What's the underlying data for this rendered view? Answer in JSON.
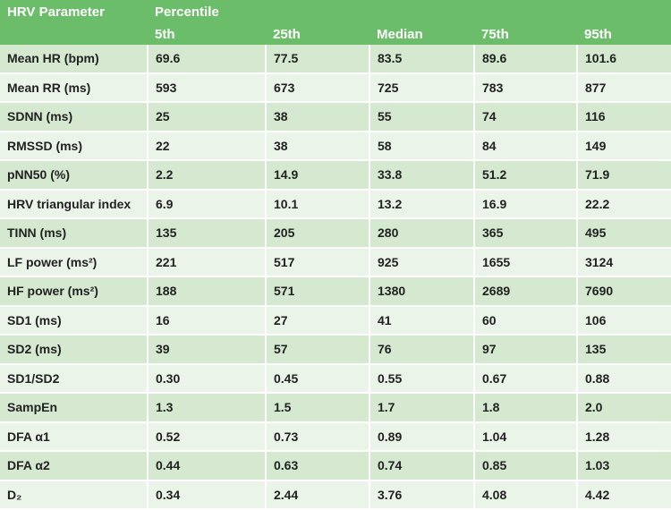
{
  "table": {
    "header": {
      "parameter": "HRV Parameter",
      "percentile": "Percentile",
      "columns": [
        "5th",
        "25th",
        "Median",
        "75th",
        "95th"
      ]
    },
    "rows": [
      [
        "Mean HR (bpm)",
        "69.6",
        "77.5",
        "83.5",
        "89.6",
        "101.6"
      ],
      [
        "Mean RR (ms)",
        "593",
        "673",
        "725",
        "783",
        "877"
      ],
      [
        "SDNN (ms)",
        "25",
        "38",
        "55",
        "74",
        "116"
      ],
      [
        "RMSSD (ms)",
        "22",
        "38",
        "58",
        "84",
        "149"
      ],
      [
        "pNN50 (%)",
        "2.2",
        "14.9",
        "33.8",
        "51.2",
        "71.9"
      ],
      [
        "HRV triangular index",
        "6.9",
        "10.1",
        "13.2",
        "16.9",
        "22.2"
      ],
      [
        "TINN (ms)",
        "135",
        "205",
        "280",
        "365",
        "495"
      ],
      [
        "LF power (ms²)",
        "221",
        "517",
        "925",
        "1655",
        "3124"
      ],
      [
        "HF power (ms²)",
        "188",
        "571",
        "1380",
        "2689",
        "7690"
      ],
      [
        "SD1 (ms)",
        "16",
        "27",
        "41",
        "60",
        "106"
      ],
      [
        "SD2 (ms)",
        "39",
        "57",
        "76",
        "97",
        "135"
      ],
      [
        "SD1/SD2",
        "0.30",
        "0.45",
        "0.55",
        "0.67",
        "0.88"
      ],
      [
        "SampEn",
        "1.3",
        "1.5",
        "1.7",
        "1.8",
        "2.0"
      ],
      [
        "DFA α1",
        "0.52",
        "0.73",
        "0.89",
        "1.04",
        "1.28"
      ],
      [
        "DFA α2",
        "0.44",
        "0.63",
        "0.74",
        "0.85",
        "1.03"
      ],
      [
        "D₂",
        "0.34",
        "2.44",
        "3.76",
        "4.08",
        "4.42"
      ]
    ]
  }
}
